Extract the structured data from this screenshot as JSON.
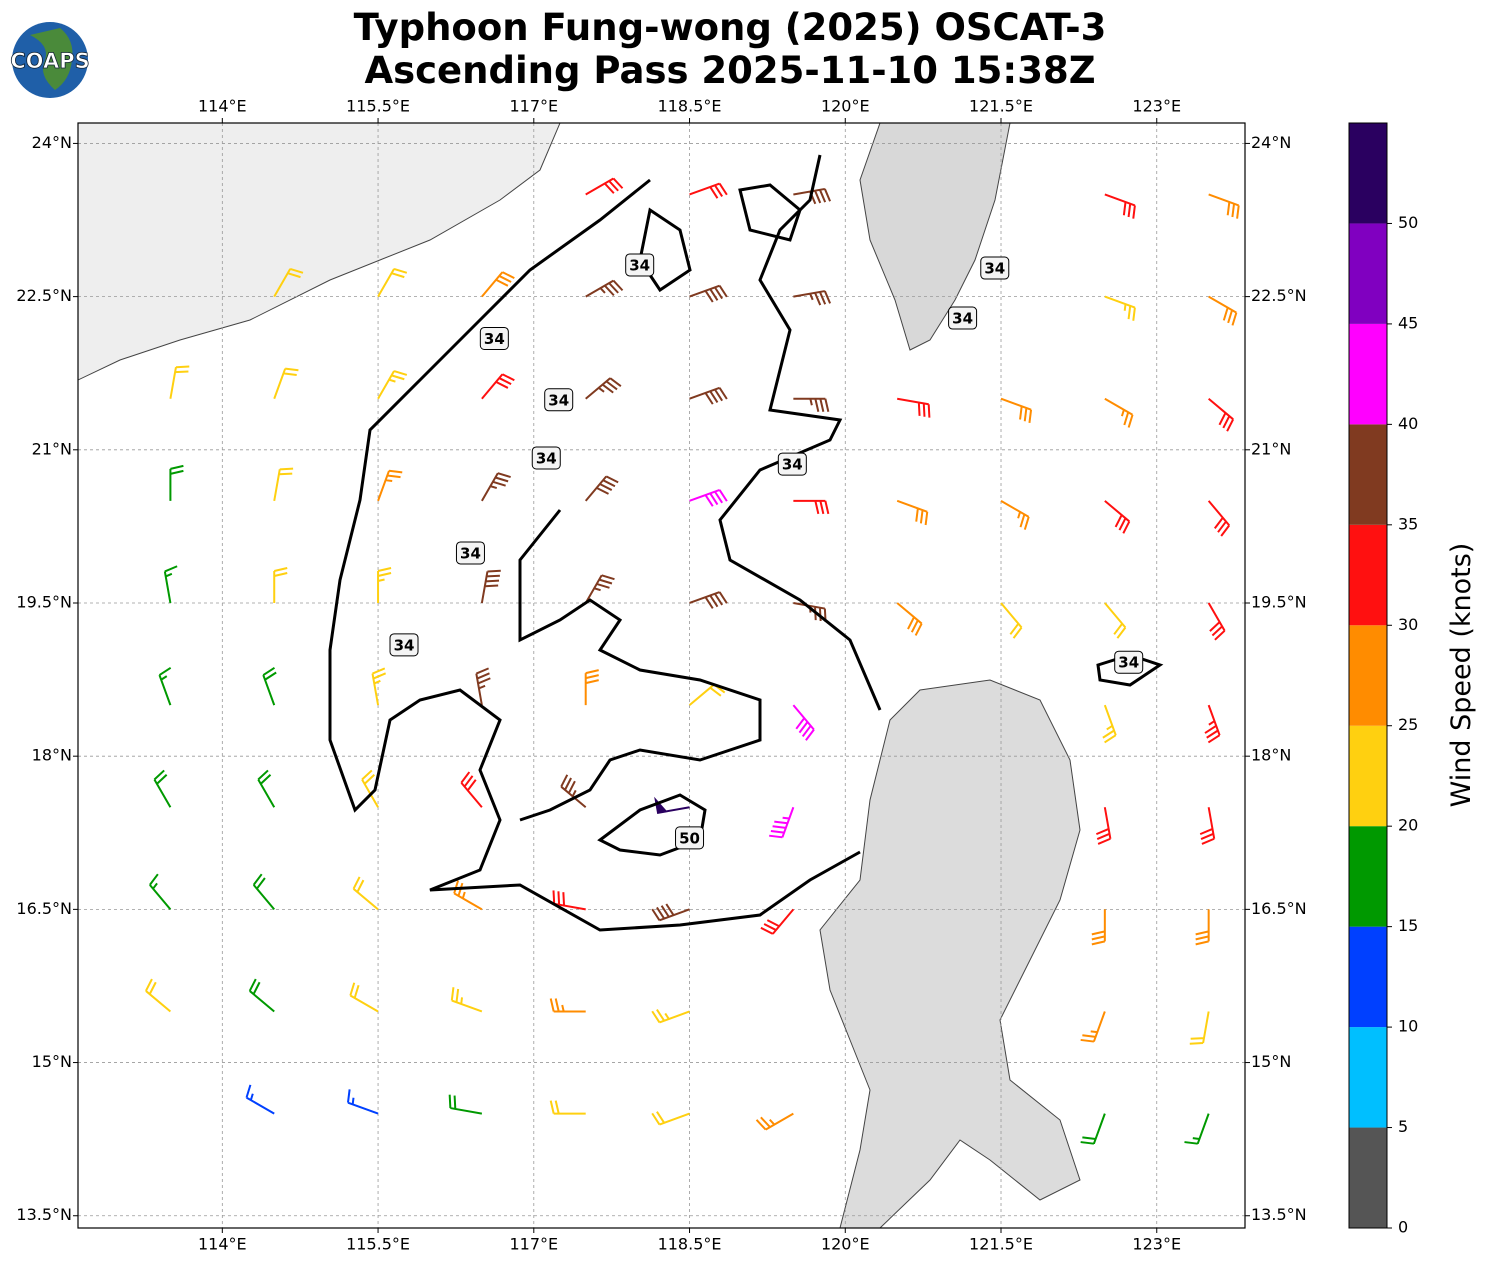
{
  "logo": "COAPS",
  "title": [
    "Typhoon Fung-wong (2025) OSCAT-3",
    "Ascending Pass 2025-11-10 15:38Z"
  ],
  "map": {
    "xlim": [
      112.61,
      123.85
    ],
    "ylim": [
      13.38,
      24.2
    ],
    "xticks": [
      {
        "value": 114,
        "label": "114°E"
      },
      {
        "value": 115.5,
        "label": "115.5°E"
      },
      {
        "value": 117,
        "label": "117°E"
      },
      {
        "value": 118.5,
        "label": "118.5°E"
      },
      {
        "value": 120,
        "label": "120°E"
      },
      {
        "value": 121.5,
        "label": "121.5°E"
      },
      {
        "value": 123,
        "label": "123°E"
      }
    ],
    "yticks": [
      {
        "value": 24,
        "label": "24°N"
      },
      {
        "value": 22.5,
        "label": "22.5°N"
      },
      {
        "value": 21,
        "label": "21°N"
      },
      {
        "value": 19.5,
        "label": "19.5°N"
      },
      {
        "value": 18,
        "label": "18°N"
      },
      {
        "value": 16.5,
        "label": "16.5°N"
      },
      {
        "value": 15,
        "label": "15°N"
      },
      {
        "value": 13.5,
        "label": "13.5°N"
      }
    ],
    "grid": true
  },
  "contours": [
    {
      "level": 34,
      "lon": 118.02,
      "lat": 22.81
    },
    {
      "level": 34,
      "lon": 116.62,
      "lat": 22.09
    },
    {
      "level": 34,
      "lon": 117.24,
      "lat": 21.49
    },
    {
      "level": 34,
      "lon": 117.12,
      "lat": 20.92
    },
    {
      "level": 34,
      "lon": 116.39,
      "lat": 19.99
    },
    {
      "level": 34,
      "lon": 115.75,
      "lat": 19.09
    },
    {
      "level": 34,
      "lon": 119.49,
      "lat": 20.86
    },
    {
      "level": 34,
      "lon": 121.44,
      "lat": 22.78
    },
    {
      "level": 34,
      "lon": 121.13,
      "lat": 22.29
    },
    {
      "level": 34,
      "lon": 122.73,
      "lat": 18.92
    },
    {
      "level": 50,
      "lon": 118.5,
      "lat": 17.2
    }
  ],
  "colorbar": {
    "label": "Wind Speed (knots)",
    "bounds": [
      0,
      5,
      10,
      15,
      20,
      25,
      30,
      35,
      40,
      45,
      50,
      55
    ],
    "colors": [
      "#555555",
      "#00bfff",
      "#0040ff",
      "#009900",
      "#ffd010",
      "#ff8c00",
      "#ff1010",
      "#803a20",
      "#ff00ff",
      "#8000c0",
      "#2a0060"
    ],
    "ticks": [
      0,
      5,
      10,
      15,
      20,
      25,
      30,
      35,
      40,
      45,
      50
    ]
  },
  "barbs": {
    "lon": [
      113.5,
      114.5,
      115.5,
      116.5,
      117.5,
      118.5,
      119.5,
      120.5,
      121.5,
      122.5,
      123.5
    ],
    "lat": [
      23.5,
      22.5,
      21.5,
      20.5,
      19.5,
      18.5,
      17.5,
      16.5,
      15.5,
      14.5
    ],
    "speed": [
      [
        null,
        null,
        null,
        null,
        30,
        32,
        38,
        null,
        null,
        32,
        28
      ],
      [
        null,
        22,
        20,
        28,
        36,
        38,
        36,
        null,
        null,
        24,
        28
      ],
      [
        20,
        22,
        24,
        32,
        37,
        38,
        36,
        30,
        28,
        26,
        30
      ],
      [
        18,
        20,
        26,
        37,
        38,
        40,
        32,
        28,
        27,
        32,
        30
      ],
      [
        17,
        20,
        24,
        38,
        36,
        38,
        37,
        28,
        22,
        22,
        32
      ],
      [
        17,
        19,
        23,
        37,
        28,
        22,
        42,
        null,
        null,
        24,
        33
      ],
      [
        18,
        19,
        22,
        30,
        37,
        52,
        44,
        null,
        null,
        32,
        32
      ],
      [
        16,
        18,
        21,
        27,
        32,
        38,
        32,
        null,
        null,
        28,
        28
      ],
      [
        22,
        18,
        20,
        24,
        26,
        24,
        null,
        null,
        null,
        26,
        22
      ],
      [
        null,
        14,
        14,
        18,
        21,
        22,
        25,
        null,
        null,
        18,
        15
      ]
    ],
    "direction": [
      [
        null,
        null,
        null,
        null,
        60,
        70,
        80,
        null,
        null,
        110,
        110
      ],
      [
        null,
        30,
        30,
        40,
        60,
        70,
        80,
        null,
        null,
        110,
        120
      ],
      [
        10,
        20,
        30,
        40,
        50,
        70,
        90,
        100,
        110,
        120,
        130
      ],
      [
        0,
        10,
        20,
        30,
        40,
        70,
        90,
        110,
        120,
        130,
        140
      ],
      [
        350,
        0,
        0,
        10,
        30,
        70,
        100,
        130,
        140,
        140,
        150
      ],
      [
        340,
        340,
        350,
        350,
        0,
        50,
        140,
        null,
        null,
        160,
        160
      ],
      [
        330,
        330,
        330,
        320,
        310,
        260,
        200,
        null,
        null,
        170,
        170
      ],
      [
        320,
        320,
        310,
        300,
        280,
        250,
        220,
        null,
        null,
        180,
        180
      ],
      [
        310,
        310,
        300,
        290,
        270,
        250,
        null,
        null,
        null,
        200,
        190
      ],
      [
        null,
        300,
        290,
        280,
        270,
        250,
        240,
        null,
        null,
        200,
        200
      ]
    ]
  }
}
